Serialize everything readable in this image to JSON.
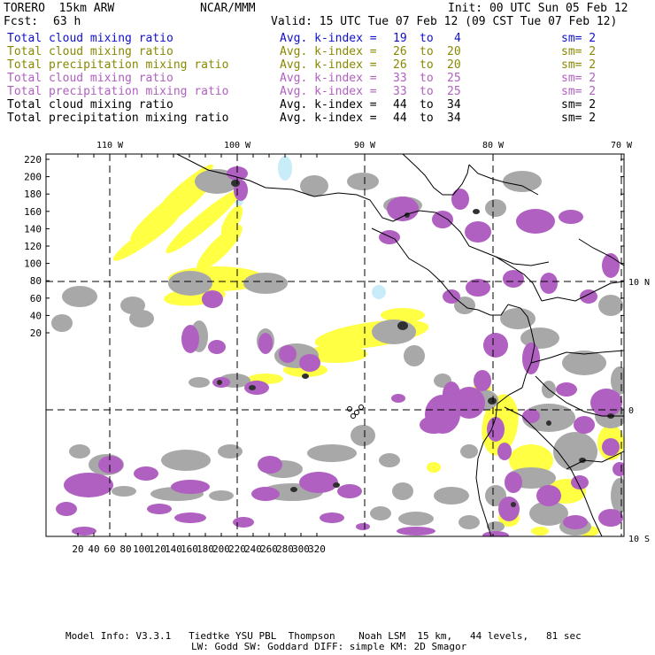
{
  "header": {
    "model": "TORERO  15km ARW",
    "center": "NCAR/MMM",
    "init": "Init: 00 UTC Sun 05 Feb 12",
    "fcst_label": "Fcst:",
    "fcst_hours": "63 h",
    "valid": "Valid: 15 UTC Tue 07 Feb 12 (09 CST Tue 07 Feb 12)"
  },
  "legend": [
    {
      "field": "Total cloud mixing ratio",
      "avg": "Avg. k-index =",
      "from": "19",
      "to_word": "to",
      "to": "4",
      "sm": "sm= 2",
      "color": "#1010cc"
    },
    {
      "field": "Total cloud mixing ratio",
      "avg": "Avg. k-index =",
      "from": "26",
      "to_word": "to",
      "to": "20",
      "sm": "sm= 2",
      "color": "#888800"
    },
    {
      "field": "Total precipitation mixing ratio",
      "avg": "Avg. k-index =",
      "from": "26",
      "to_word": "to",
      "to": "20",
      "sm": "sm= 2",
      "color": "#888800"
    },
    {
      "field": "Total cloud mixing ratio",
      "avg": "Avg. k-index =",
      "from": "33",
      "to_word": "to",
      "to": "25",
      "sm": "sm= 2",
      "color": "#b060c0"
    },
    {
      "field": "Total precipitation mixing ratio",
      "avg": "Avg. k-index =",
      "from": "33",
      "to_word": "to",
      "to": "25",
      "sm": "sm= 2",
      "color": "#b060c0"
    },
    {
      "field": "Total cloud mixing ratio",
      "avg": "Avg. k-index =",
      "from": "44",
      "to_word": "to",
      "to": "34",
      "sm": "sm= 2",
      "color": "#000000"
    },
    {
      "field": "Total precipitation mixing ratio",
      "avg": "Avg. k-index =",
      "from": "44",
      "to_word": "to",
      "to": "34",
      "sm": "sm= 2",
      "color": "#000000"
    }
  ],
  "map": {
    "lon_labels": [
      "110 W",
      "100 W",
      "90 W",
      "80 W",
      "70 W"
    ],
    "lat_labels": [
      "10 N",
      "0",
      "10 S"
    ],
    "y_ticks": [
      "220",
      "200",
      "180",
      "160",
      "140",
      "120",
      "100",
      "80",
      "60",
      "40",
      "20"
    ],
    "x_ticks": [
      "20",
      "40",
      "60",
      "80",
      "100",
      "120",
      "140",
      "160",
      "180",
      "200",
      "220",
      "240",
      "260",
      "280",
      "300",
      "320"
    ],
    "colors": {
      "yellow": "#ffff44",
      "gray": "#a8a8a8",
      "purple": "#b060c0",
      "dark": "#303030",
      "cyan": "#c8ecf8"
    }
  },
  "footer": {
    "line1": "Model Info: V3.3.1   Tiedtke YSU PBL  Thompson    Noah LSM  15 km,   44 levels,   81 sec",
    "line2": "LW: Godd SW: Goddard DIFF: simple KM: 2D Smagor"
  }
}
